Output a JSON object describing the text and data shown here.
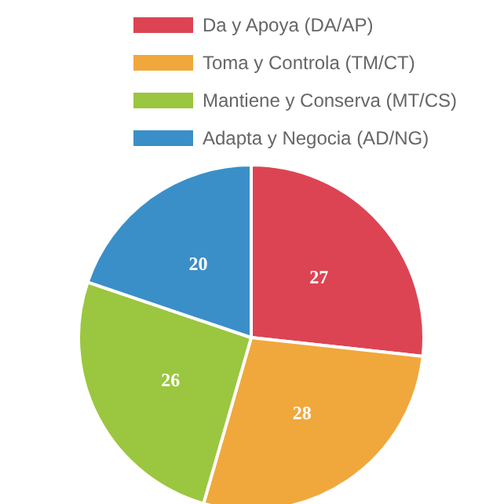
{
  "chart_data": {
    "type": "pie",
    "categories": [
      "Da y Apoya (DA/AP)",
      "Toma y Controla (TM/CT)",
      "Mantiene y Conserva (MT/CS)",
      "Adapta y Negocia (AD/NG)"
    ],
    "values": [
      27,
      28,
      26,
      20
    ],
    "colors": [
      "#dc4453",
      "#f0a83c",
      "#9bc63f",
      "#3a8fc8"
    ],
    "legend": "top",
    "data_labels": true
  }
}
